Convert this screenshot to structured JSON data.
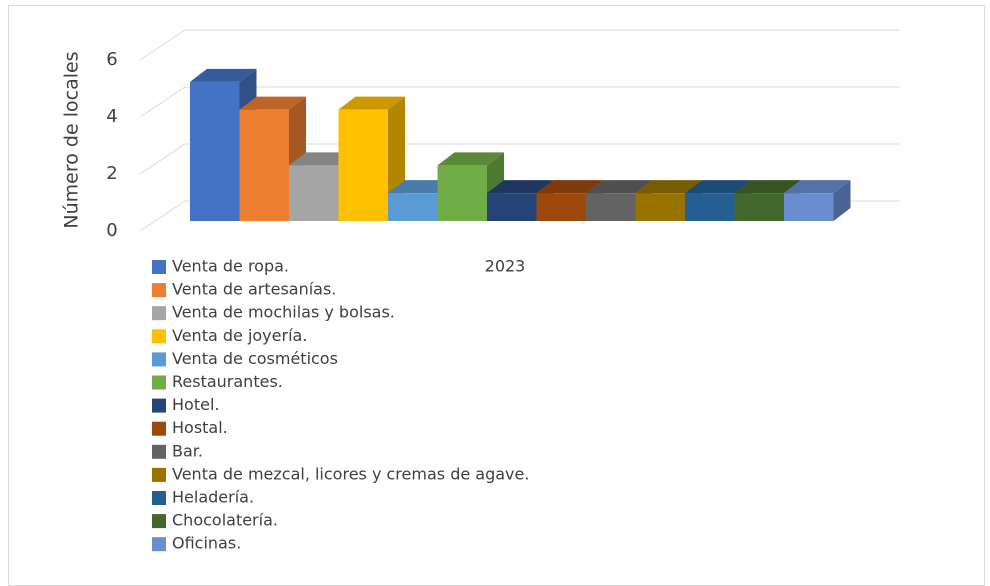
{
  "chart_data": {
    "type": "bar",
    "y_label": "Número de locales",
    "categories": [
      "2023"
    ],
    "ylim": [
      0,
      6
    ],
    "yticks": [
      0,
      2,
      4,
      6
    ],
    "grid": true,
    "legend": "bottom",
    "series": [
      {
        "name": "Venta de ropa.",
        "color": "#4472c4",
        "values": [
          5
        ]
      },
      {
        "name": "Venta de artesanías.",
        "color": "#ed7d31",
        "values": [
          4
        ]
      },
      {
        "name": "Venta de mochilas y bolsas.",
        "color": "#a5a5a5",
        "values": [
          2
        ]
      },
      {
        "name": "Venta de joyería.",
        "color": "#ffc000",
        "values": [
          4
        ]
      },
      {
        "name": "Venta de cosméticos",
        "color": "#5b9bd5",
        "values": [
          1
        ]
      },
      {
        "name": "Restaurantes.",
        "color": "#70ad47",
        "values": [
          2
        ]
      },
      {
        "name": "Hotel.",
        "color": "#264478",
        "values": [
          1
        ]
      },
      {
        "name": "Hostal.",
        "color": "#9e480e",
        "values": [
          1
        ]
      },
      {
        "name": "Bar.",
        "color": "#636363",
        "values": [
          1
        ]
      },
      {
        "name": "Venta de mezcal, licores y cremas de agave.",
        "color": "#997300",
        "values": [
          1
        ]
      },
      {
        "name": "Heladería.",
        "color": "#255e91",
        "values": [
          1
        ]
      },
      {
        "name": "Chocolatería.",
        "color": "#43682b",
        "values": [
          1
        ]
      },
      {
        "name": "Oficinas.",
        "color": "#698ed0",
        "values": [
          1
        ]
      }
    ]
  }
}
